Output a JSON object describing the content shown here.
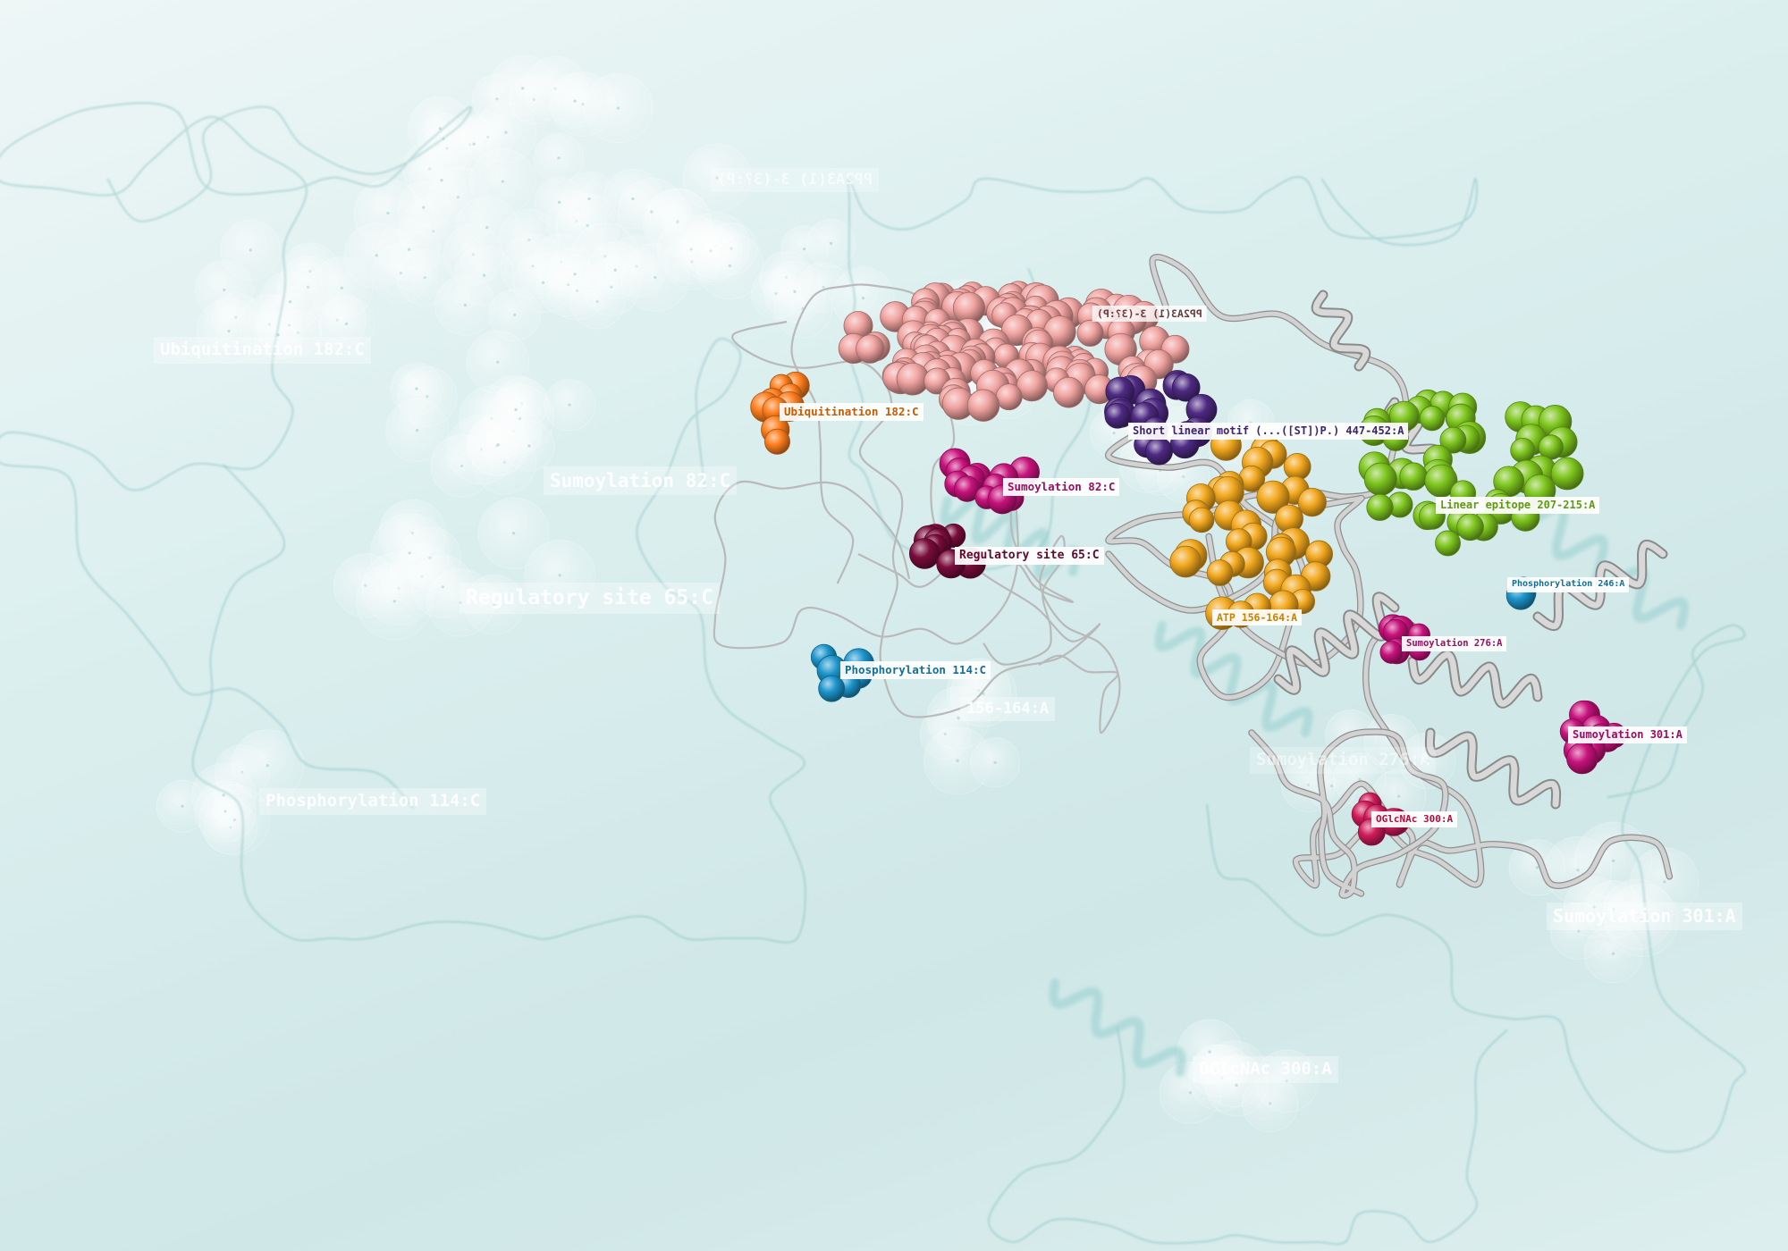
{
  "colors": {
    "background": "#d6ecec",
    "ribbon": "#bdbdbd",
    "ghost_label": "#ffffff"
  },
  "labels": {
    "ptm_1": "PP2A3(1) 3-(3?:P)",
    "ubiquitination": "Ubiquitination 182:C",
    "sumoylation_82": "Sumoylation 82:C",
    "regulatory_site": "Regulatory site  65:C",
    "phosphorylation_114": "Phosphorylation 114:C",
    "short_linear_motif": "Short linear motif (...([ST])P.) 447-452:A",
    "linear_epitope": "Linear epitope 207-215:A",
    "atp": "ATP 156-164:A",
    "phosphorylation_246": "Phosphorylation 246:A",
    "sumoylation_276": "Sumoylation 276:A",
    "sumoylation_301": "Sumoylation 301:A",
    "oglcnac": "OGlcNAc 300:A"
  },
  "ghost_labels": {
    "ptm_1": "PP2A3(1) 3-(3?:P)",
    "ubiquitination": "Ubiquitination 182:C",
    "sumoylation_82": "Sumoylation 82:C",
    "regulatory_site": "Regulatory site  65:C",
    "phosphorylation_114": "Phosphorylation 114:C",
    "atp": "156-164:A",
    "sumoylation_276": "Sumoylation 276:A",
    "sumoylation_301": "Sumoylation 301:A",
    "oglcnac": "OGlcNAc 300:A"
  },
  "clusters": [
    {
      "name": "pp2a-binding",
      "color": "#f0a3a0"
    },
    {
      "name": "ubiquitination",
      "color": "#ff7f1e"
    },
    {
      "name": "short-linear-motif",
      "color": "#4e2a82"
    },
    {
      "name": "sumoylation-82",
      "color": "#c8127c"
    },
    {
      "name": "regulatory-site",
      "color": "#7a0c3c"
    },
    {
      "name": "phosphorylation-114",
      "color": "#1c95cc"
    },
    {
      "name": "linear-epitope",
      "color": "#7ec61e"
    },
    {
      "name": "atp",
      "color": "#f2a81e"
    },
    {
      "name": "phosphorylation-246",
      "color": "#1c95cc"
    },
    {
      "name": "sumoylation-276",
      "color": "#c8127c"
    },
    {
      "name": "sumoylation-301",
      "color": "#c8127c"
    },
    {
      "name": "oglcnac",
      "color": "#d01c5a"
    }
  ]
}
